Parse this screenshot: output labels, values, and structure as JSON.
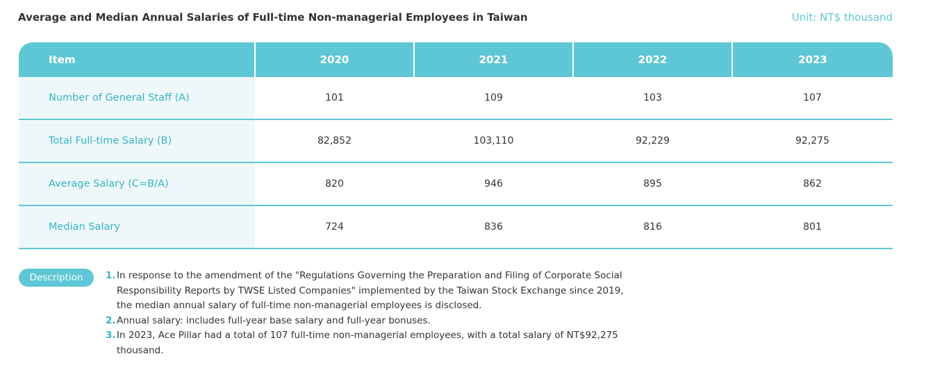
{
  "header": {
    "title": "Average and Median Annual Salaries of Full-time Non-managerial Employees in Taiwan",
    "unit": "Unit: NT$ thousand"
  },
  "table": {
    "columns": [
      "Item",
      "2020",
      "2021",
      "2022",
      "2023"
    ],
    "rows": [
      {
        "label": "Number of General Staff (A)",
        "values": [
          "101",
          "109",
          "103",
          "107"
        ]
      },
      {
        "label": "Total Full-time Salary (B)",
        "values": [
          "82,852",
          "103,110",
          "92,229",
          "92,275"
        ]
      },
      {
        "label": "Average Salary (C=B/A)",
        "values": [
          "820",
          "946",
          "895",
          "862"
        ]
      },
      {
        "label": "Median Salary",
        "values": [
          "724",
          "836",
          "816",
          "801"
        ]
      }
    ]
  },
  "description": {
    "badge": "Description",
    "items": [
      {
        "num": "1.",
        "text": "In response to the amendment of the \"Regulations Governing the Preparation and Filing of Corporate Social Responsibility Reports by TWSE Listed Companies\" implemented by the Taiwan Stock Exchange since 2019, the median annual salary of full-time non-managerial employees is disclosed."
      },
      {
        "num": "2.",
        "text": "Annual salary: includes full-year base salary and full-year bonuses."
      },
      {
        "num": "3.",
        "text": "In 2023, Ace Pillar had a total of 107 full-time non-managerial employees, with a total salary of NT$92,275 thousand."
      }
    ]
  }
}
